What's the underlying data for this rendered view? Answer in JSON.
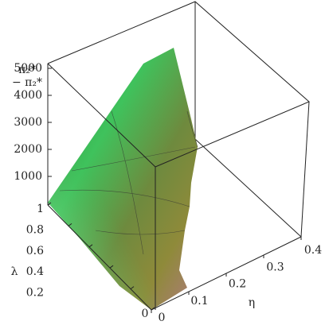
{
  "chart_data": {
    "type": "surface",
    "zlabel": [
      "π₂*",
      "− π₂*"
    ],
    "xlabel": "η",
    "ylabel": "λ",
    "zlim": [
      0,
      5000
    ],
    "zticks": [
      1000,
      2000,
      3000,
      4000,
      5000
    ],
    "ylim": [
      0,
      1
    ],
    "yticks": [
      0,
      0.2,
      0.4,
      0.6,
      0.8,
      1
    ],
    "xlim": [
      0,
      0.4
    ],
    "xticks": [
      0,
      0.1,
      0.2,
      0.3,
      0.4
    ]
  }
}
